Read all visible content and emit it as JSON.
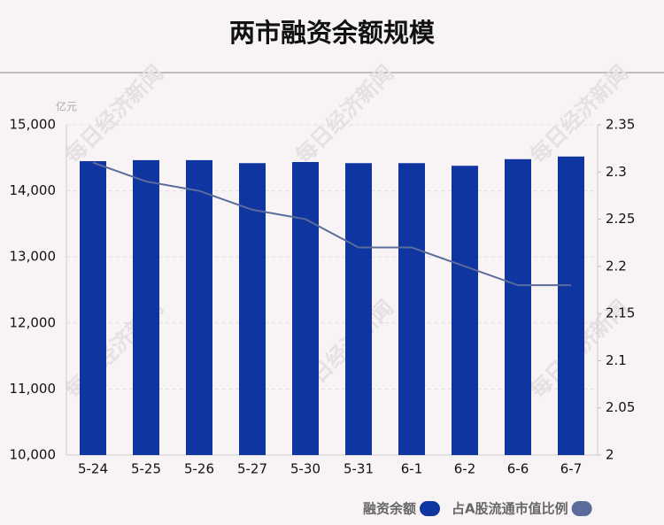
{
  "chart_data": {
    "type": "bar-line",
    "title": "两市融资余额规模",
    "y_unit": "亿元",
    "watermark": "每日经济新闻",
    "categories": [
      "5-24",
      "5-25",
      "5-26",
      "5-27",
      "5-30",
      "5-31",
      "6-1",
      "6-2",
      "6-6",
      "6-7"
    ],
    "series": [
      {
        "name": "融资余额",
        "color": "#0f35a0",
        "type": "bar",
        "values": [
          14450,
          14465,
          14465,
          14420,
          14437,
          14420,
          14420,
          14380,
          14480,
          14520
        ]
      },
      {
        "name": "占A股流通市值比例",
        "color": "#5b6b9b",
        "type": "line",
        "axis": "y2",
        "values": [
          2.31,
          2.29,
          2.28,
          2.26,
          2.25,
          2.22,
          2.22,
          2.2,
          2.18,
          2.18
        ]
      }
    ],
    "ylim": [
      10000,
      15000
    ],
    "yticks": [
      {
        "value": 10000,
        "label": "10,000"
      },
      {
        "value": 11000,
        "label": "11,000"
      },
      {
        "value": 12000,
        "label": "12,000"
      },
      {
        "value": 13000,
        "label": "13,000"
      },
      {
        "value": 14000,
        "label": "14,000"
      },
      {
        "value": 15000,
        "label": "15,000"
      }
    ],
    "y2lim": [
      2,
      2.35
    ],
    "y2ticks": [
      2,
      2.05,
      2.1,
      2.15,
      2.2,
      2.25,
      2.3,
      2.35
    ],
    "grid": true
  }
}
